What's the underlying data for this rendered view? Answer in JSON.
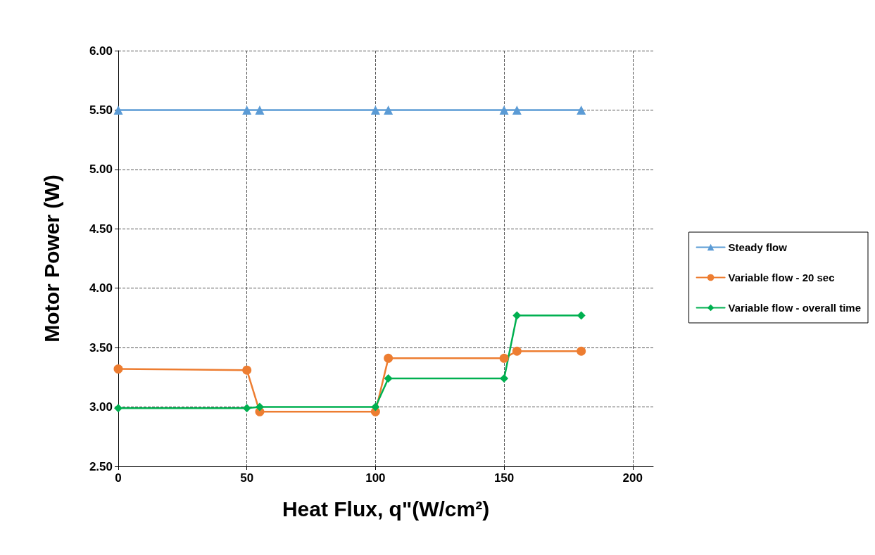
{
  "chart_data": {
    "type": "line",
    "xlabel": "Heat Flux, q\"(W/cm²)",
    "ylabel": "Motor Power (W)",
    "xlim": [
      0,
      208
    ],
    "xticks": [
      0,
      50,
      100,
      150,
      200
    ],
    "ylim": [
      2.5,
      6.0
    ],
    "yticks": [
      {
        "value": 2.5,
        "label": "2.50"
      },
      {
        "value": 3.0,
        "label": "3.00"
      },
      {
        "value": 3.5,
        "label": "3.50"
      },
      {
        "value": 4.0,
        "label": "4.00"
      },
      {
        "value": 4.5,
        "label": "4.50"
      },
      {
        "value": 5.0,
        "label": "5.00"
      },
      {
        "value": 5.5,
        "label": "5.50"
      },
      {
        "value": 6.0,
        "label": "6.00"
      }
    ],
    "grid": true,
    "legend": "right",
    "line_style": "solid",
    "series": [
      {
        "name": "Steady flow",
        "color": "#5b9bd5",
        "marker": "triangle",
        "x": [
          0,
          50,
          55,
          100,
          105,
          150,
          155,
          180
        ],
        "values": [
          5.5,
          5.5,
          5.5,
          5.5,
          5.5,
          5.5,
          5.5,
          5.5
        ]
      },
      {
        "name": "Variable flow - 20 sec",
        "color": "#ed7d31",
        "marker": "circle",
        "x": [
          0,
          50,
          55,
          100,
          105,
          150,
          155,
          180
        ],
        "values": [
          3.32,
          3.31,
          2.96,
          2.96,
          3.41,
          3.41,
          3.47,
          3.47
        ]
      },
      {
        "name": "Variable flow - overall time",
        "color": "#00b050",
        "marker": "diamond",
        "x": [
          0,
          50,
          55,
          100,
          105,
          150,
          155,
          180
        ],
        "values": [
          2.99,
          2.99,
          3.0,
          3.0,
          3.24,
          3.24,
          3.77,
          3.77
        ]
      }
    ]
  }
}
